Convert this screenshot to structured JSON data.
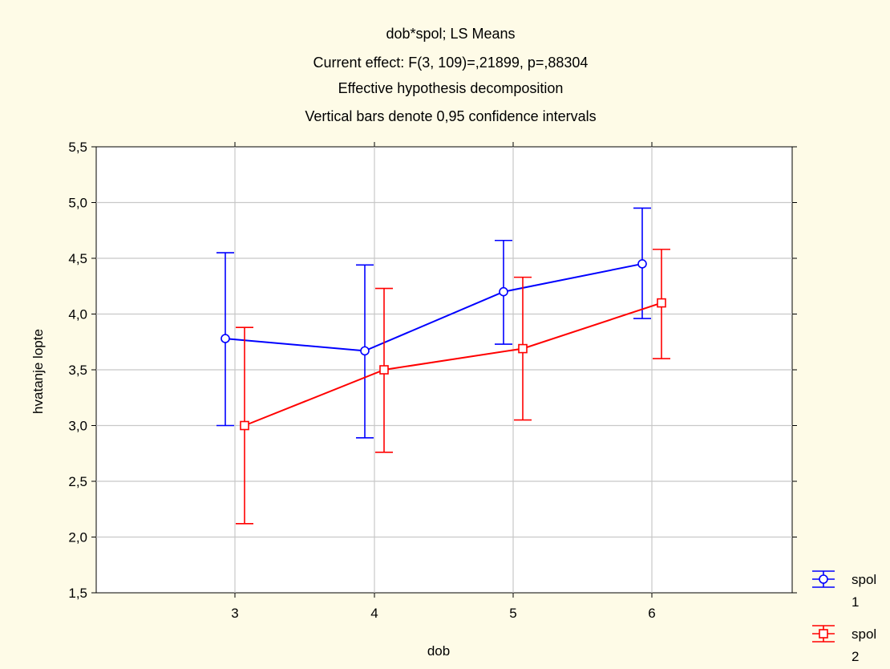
{
  "chart_data": {
    "type": "line",
    "title_lines": [
      "dob*spol; LS Means",
      "Current effect: F(3, 109)=,21899, p=,88304",
      "Effective hypothesis decomposition",
      "Vertical bars denote 0,95 confidence intervals"
    ],
    "xlabel": "dob",
    "ylabel": "hvatanje lopte",
    "categories": [
      "3",
      "4",
      "5",
      "6"
    ],
    "ylim": [
      1.5,
      5.5
    ],
    "yticks": [
      "1,5",
      "2,0",
      "2,5",
      "3,0",
      "3,5",
      "4,0",
      "4,5",
      "5,0",
      "5,5"
    ],
    "grid": true,
    "legend_title": "spol",
    "legend_position": "bottom-right",
    "series": [
      {
        "name": "1",
        "color": "#0000ff",
        "marker": "circle",
        "values": [
          3.78,
          3.67,
          4.2,
          4.45
        ],
        "lower": [
          3.0,
          2.89,
          3.73,
          3.96
        ],
        "upper": [
          4.55,
          4.44,
          4.66,
          4.95
        ]
      },
      {
        "name": "2",
        "color": "#ff0000",
        "marker": "square",
        "values": [
          3.0,
          3.5,
          3.69,
          4.1
        ],
        "lower": [
          2.12,
          2.76,
          3.05,
          3.6
        ],
        "upper": [
          3.88,
          4.23,
          4.33,
          4.58
        ]
      }
    ]
  }
}
